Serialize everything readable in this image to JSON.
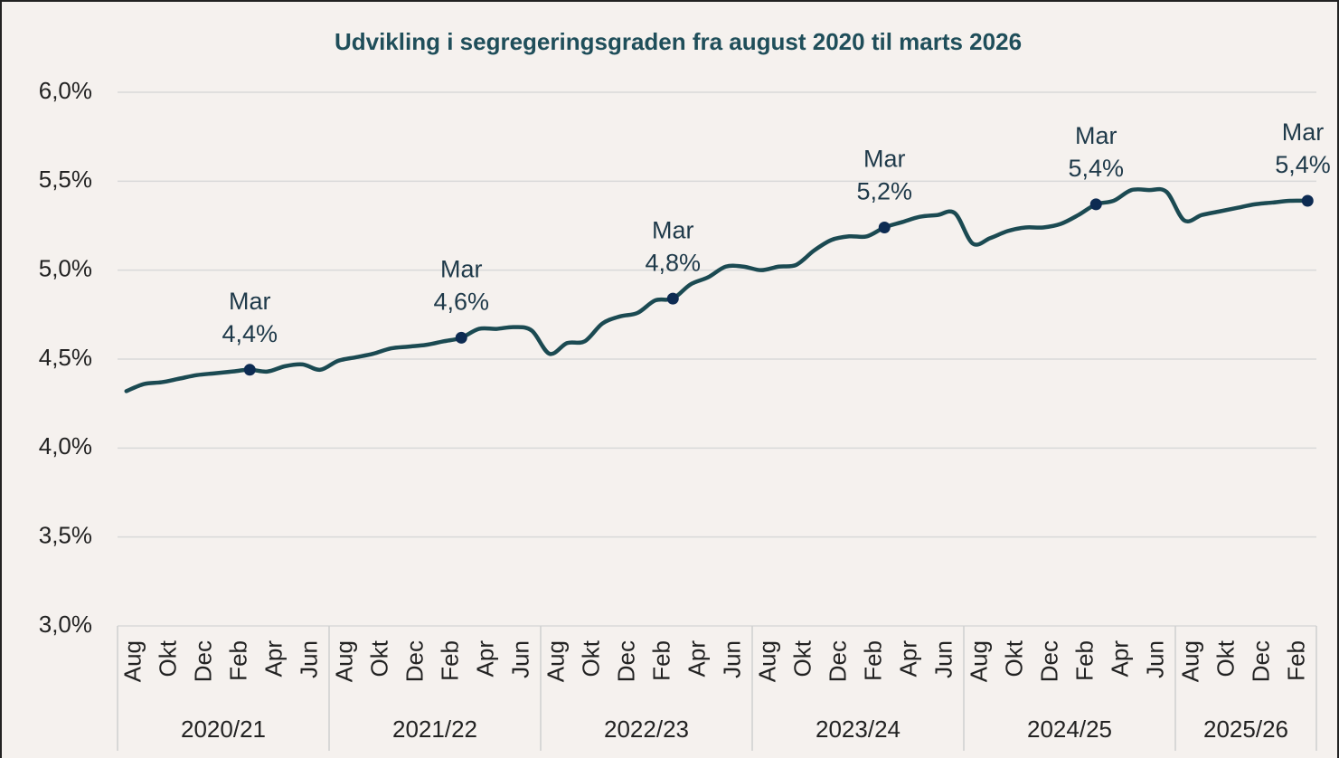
{
  "chart_data": {
    "type": "line",
    "title": "Udvikling i segregeringsgraden fra august 2020 til marts 2026",
    "categories": [
      "Aug",
      null,
      "Okt",
      null,
      "Dec",
      null,
      "Feb",
      null,
      "Apr",
      null,
      "Jun",
      null,
      "Aug",
      null,
      "Okt",
      null,
      "Dec",
      null,
      "Feb",
      null,
      "Apr",
      null,
      "Jun",
      null,
      "Aug",
      null,
      "Okt",
      null,
      "Dec",
      null,
      "Feb",
      null,
      "Apr",
      null,
      "Jun",
      null,
      "Aug",
      null,
      "Okt",
      null,
      "Dec",
      null,
      "Feb",
      null,
      "Apr",
      null,
      "Jun",
      null,
      "Aug",
      null,
      "Okt",
      null,
      "Dec",
      null,
      "Feb",
      null,
      "Apr",
      null,
      "Jun",
      null,
      "Aug",
      null,
      "Okt",
      null,
      "Dec",
      null,
      "Feb",
      null
    ],
    "groups": [
      "2020/21",
      "2021/22",
      "2022/23",
      "2023/24",
      "2024/25",
      "2025/26"
    ],
    "series": [
      {
        "name": "Segregeringsgrad",
        "color": "#1b4a52",
        "marker_color": "#0d2b52",
        "values": [
          4.32,
          4.36,
          4.37,
          4.39,
          4.41,
          4.42,
          4.43,
          4.44,
          4.43,
          4.46,
          4.47,
          4.44,
          4.49,
          4.51,
          4.53,
          4.56,
          4.57,
          4.58,
          4.6,
          4.62,
          4.67,
          4.67,
          4.68,
          4.66,
          4.53,
          4.59,
          4.6,
          4.7,
          4.74,
          4.76,
          4.83,
          4.84,
          4.92,
          4.96,
          5.02,
          5.02,
          5.0,
          5.02,
          5.03,
          5.11,
          5.17,
          5.19,
          5.19,
          5.24,
          5.27,
          5.3,
          5.31,
          5.32,
          5.15,
          5.18,
          5.22,
          5.24,
          5.24,
          5.26,
          5.31,
          5.37,
          5.39,
          5.45,
          5.45,
          5.44,
          5.28,
          5.31,
          5.33,
          5.35,
          5.37,
          5.38,
          5.39,
          5.39
        ],
        "value_labels": [
          null,
          null,
          null,
          null,
          null,
          null,
          null,
          "4,4%",
          null,
          null,
          null,
          null,
          null,
          null,
          null,
          null,
          null,
          null,
          null,
          "4,6%",
          null,
          null,
          null,
          null,
          null,
          null,
          null,
          null,
          null,
          null,
          null,
          "4,8%",
          null,
          null,
          null,
          null,
          null,
          null,
          null,
          null,
          null,
          null,
          null,
          "5,2%",
          null,
          null,
          null,
          null,
          null,
          null,
          null,
          null,
          null,
          null,
          null,
          "5,4%",
          null,
          null,
          null,
          null,
          null,
          null,
          null,
          null,
          null,
          null,
          null,
          "5,4%"
        ],
        "point_labels": [
          null,
          null,
          null,
          null,
          null,
          null,
          null,
          "Mar",
          null,
          null,
          null,
          null,
          null,
          null,
          null,
          null,
          null,
          null,
          null,
          "Mar",
          null,
          null,
          null,
          null,
          null,
          null,
          null,
          null,
          null,
          null,
          null,
          "Mar",
          null,
          null,
          null,
          null,
          null,
          null,
          null,
          null,
          null,
          null,
          null,
          "Mar",
          null,
          null,
          null,
          null,
          null,
          null,
          null,
          null,
          null,
          null,
          null,
          "Mar",
          null,
          null,
          null,
          null,
          null,
          null,
          null,
          null,
          null,
          null,
          null,
          "Mar"
        ]
      }
    ],
    "ylim": [
      3.0,
      6.0
    ],
    "yticks": [
      {
        "value": 3.0,
        "label": "3,0%"
      },
      {
        "value": 3.5,
        "label": "3,5%"
      },
      {
        "value": 4.0,
        "label": "4,0%"
      },
      {
        "value": 4.5,
        "label": "4,5%"
      },
      {
        "value": 5.0,
        "label": "5,0%"
      },
      {
        "value": 5.5,
        "label": "5,5%"
      },
      {
        "value": 6.0,
        "label": "6,0%"
      }
    ],
    "grid": true
  }
}
